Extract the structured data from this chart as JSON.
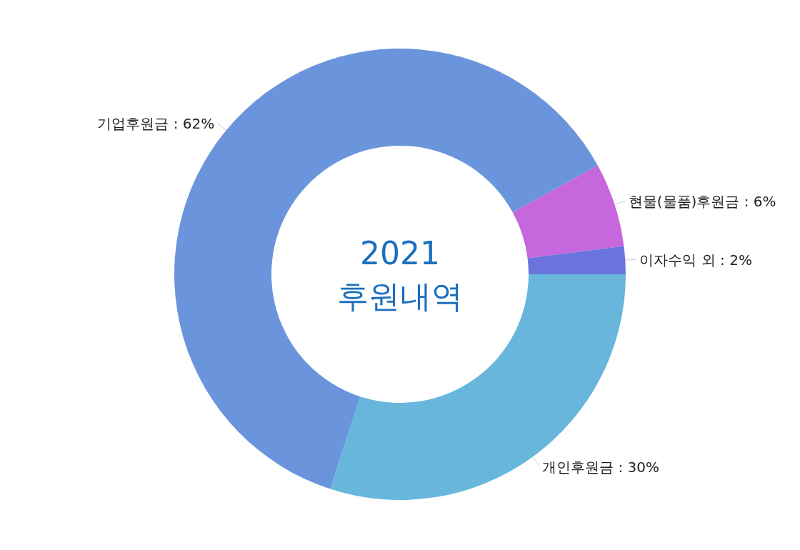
{
  "chart_data": {
    "type": "donut",
    "title": "2021",
    "subtitle": "후원내역",
    "categories": [
      "개인후원금",
      "기업후원금",
      "현물(물품)후원금",
      "이자수익 외"
    ],
    "values": [
      30,
      62,
      6,
      2
    ],
    "value_labels": [
      ": 30%",
      ": 62%",
      ": 6%",
      ": 2%"
    ],
    "colors": [
      "#68b6dc",
      "#6a95dc",
      "#c667dd",
      "#6b74dd"
    ]
  }
}
